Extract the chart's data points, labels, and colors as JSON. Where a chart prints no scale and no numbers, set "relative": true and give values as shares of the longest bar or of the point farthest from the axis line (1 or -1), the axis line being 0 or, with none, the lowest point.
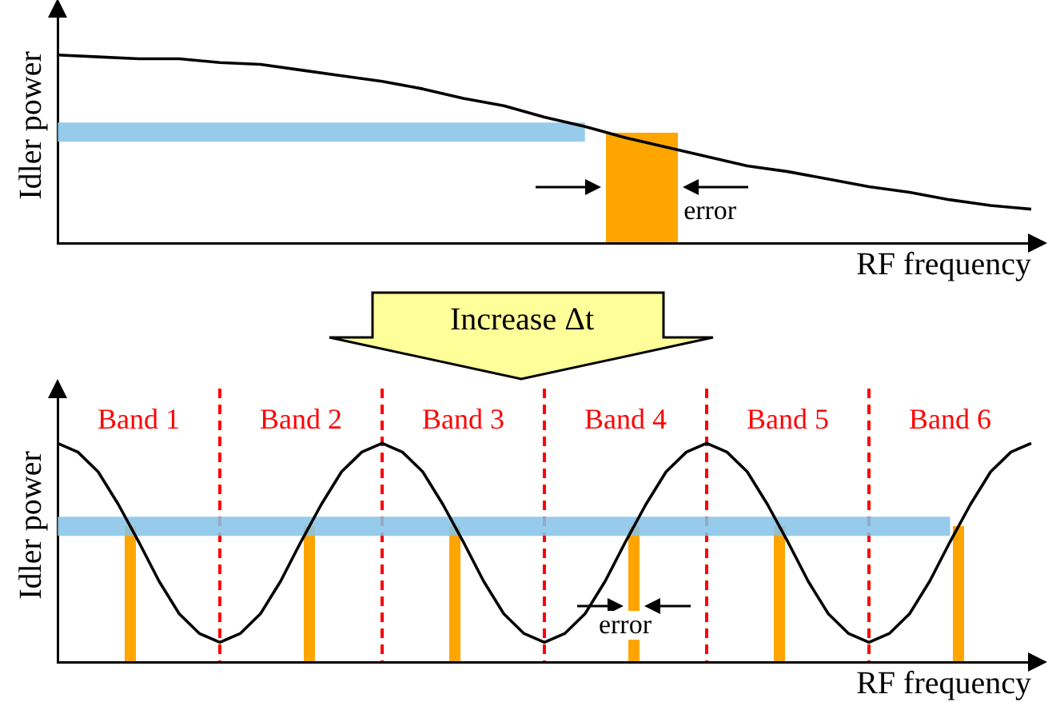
{
  "chart_data": [
    {
      "type": "line",
      "relative": true,
      "grid": false,
      "legend": false,
      "marker": "none",
      "line_style": "solid",
      "xlabel": "RF frequency",
      "ylabel": "Idler power",
      "annotations": [
        "error",
        "Increase Δt"
      ],
      "categories": [
        null,
        null,
        null,
        null,
        null,
        null,
        null,
        null,
        null,
        null,
        null,
        null,
        null,
        null,
        null,
        null,
        null,
        null,
        null,
        null,
        null,
        null,
        null,
        null,
        null
      ],
      "series": [
        {
          "color": "#000000",
          "values": [
            1,
            0.99,
            0.98,
            0.98,
            0.96,
            0.95,
            0.92,
            0.89,
            0.86,
            0.82,
            0.77,
            0.73,
            0.67,
            0.62,
            0.56,
            0.51,
            0.46,
            0.41,
            0.38,
            0.34,
            0.3,
            0.27,
            0.23,
            0.2,
            0.18
          ]
        },
        {
          "color": "#87c3e8",
          "values": [
            0.59,
            0.59,
            0.59,
            0.59,
            0.59,
            0.59,
            0.59,
            0.59,
            0.59,
            0.59,
            0.59,
            0.59,
            0.59,
            0.59,
            null,
            null,
            null,
            null,
            null,
            null,
            null,
            null,
            null,
            null,
            null
          ]
        }
      ]
    },
    {
      "type": "line",
      "relative": true,
      "grid": "x",
      "legend": false,
      "marker": "none",
      "line_style": "solid",
      "xlabel": "RF frequency",
      "ylabel": "Idler power",
      "annotations": [
        "Band 1",
        "Band 2",
        "Band 3",
        "Band 4",
        "Band 5",
        "Band 6",
        "error"
      ],
      "categories": [
        null,
        null,
        null,
        null,
        null,
        null,
        null,
        null,
        null,
        null,
        null,
        null,
        null,
        null,
        null,
        null,
        null,
        null,
        null,
        null,
        null,
        null,
        null,
        null,
        null,
        null,
        null,
        null,
        null,
        null,
        null,
        null,
        null,
        null,
        null,
        null,
        null,
        null,
        null,
        null,
        null,
        null,
        null,
        null,
        null,
        null,
        null,
        null,
        null
      ],
      "series": [
        {
          "color": "#000000",
          "values": [
            1,
            0.96,
            0.87,
            0.72,
            0.55,
            0.37,
            0.22,
            0.13,
            0.09,
            0.13,
            0.22,
            0.37,
            0.55,
            0.72,
            0.87,
            0.96,
            1,
            0.96,
            0.87,
            0.72,
            0.55,
            0.37,
            0.22,
            0.13,
            0.09,
            0.13,
            0.22,
            0.37,
            0.55,
            0.72,
            0.87,
            0.96,
            1,
            0.96,
            0.87,
            0.72,
            0.55,
            0.37,
            0.22,
            0.13,
            0.09,
            0.13,
            0.22,
            0.37,
            0.55,
            0.72,
            0.87,
            0.96,
            1
          ]
        },
        {
          "color": "#87c3e8",
          "values": [
            0.62,
            0.62,
            0.62,
            0.62,
            0.62,
            0.62,
            0.62,
            0.62,
            0.62,
            0.62,
            0.62,
            0.62,
            0.62,
            0.62,
            0.62,
            0.62,
            0.62,
            0.62,
            0.62,
            0.62,
            0.62,
            0.62,
            0.62,
            0.62,
            0.62,
            0.62,
            0.62,
            0.62,
            0.62,
            0.62,
            0.62,
            0.62,
            0.62,
            0.62,
            0.62,
            0.62,
            0.62,
            0.62,
            0.62,
            0.62,
            0.62,
            0.62,
            0.62,
            0.62,
            0.62,
            null,
            null,
            null,
            null
          ]
        }
      ]
    }
  ]
}
